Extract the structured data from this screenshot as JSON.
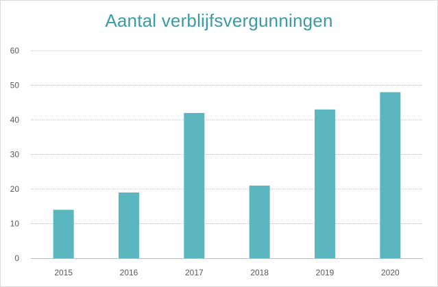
{
  "chart_data": {
    "type": "bar",
    "title": "Aantal verblijfsvergunningen",
    "categories": [
      "2015",
      "2016",
      "2017",
      "2018",
      "2019",
      "2020"
    ],
    "values": [
      14,
      19,
      42,
      21,
      43,
      48
    ],
    "xlabel": "",
    "ylabel": "",
    "ylim": [
      0,
      60
    ],
    "yticks": [
      0,
      10,
      20,
      30,
      40,
      50,
      60
    ],
    "ytick_labels": [
      "0",
      "10",
      "20",
      "30",
      "40",
      "50",
      "60"
    ],
    "grid": true,
    "legend": "none",
    "bar_color": "#5bb6c0",
    "grid_color": "#bfbfbf",
    "axis_color": "#bfbfbf",
    "title_color": "#3a9aa6"
  }
}
